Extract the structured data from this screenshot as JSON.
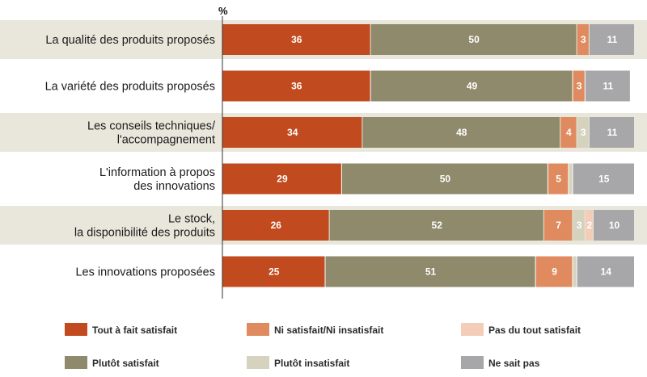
{
  "chart_data": {
    "type": "bar",
    "orientation": "horizontal",
    "stacked": true,
    "unit": "%",
    "xlim": [
      0,
      100
    ],
    "grid": false,
    "legend_position": "bottom",
    "categories": [
      [
        "La qualité des produits proposés"
      ],
      [
        "La variété des produits proposés"
      ],
      [
        "Les conseils techniques/",
        "l'accompagnement"
      ],
      [
        "L'information à propos",
        "des innovations"
      ],
      [
        "Le stock,",
        "la disponibilité des produits"
      ],
      [
        "Les innovations proposées"
      ]
    ],
    "series": [
      {
        "name": "Tout à fait satisfait",
        "color": "#c24a1f",
        "values": [
          36,
          36,
          34,
          29,
          26,
          25
        ],
        "labels": [
          "36",
          "36",
          "34",
          "29",
          "26",
          "25"
        ]
      },
      {
        "name": "Plutôt satisfait",
        "color": "#8f8a6b",
        "values": [
          50,
          49,
          48,
          50,
          52,
          51
        ],
        "labels": [
          "50",
          "49",
          "48",
          "50",
          "52",
          "51"
        ]
      },
      {
        "name": "Ni satisfait/Ni insatisfait",
        "color": "#e08b5f",
        "values": [
          3,
          3,
          4,
          5,
          7,
          9
        ],
        "labels": [
          "3",
          "3",
          "4",
          "5",
          "7",
          "9"
        ]
      },
      {
        "name": "Plutôt insatisfait",
        "color": "#d5d2be",
        "values": [
          0,
          0,
          3,
          1,
          3,
          1
        ],
        "labels": [
          "",
          "",
          "3",
          "",
          "3",
          ""
        ]
      },
      {
        "name": "Pas du tout satisfait",
        "color": "#f3cdb8",
        "values": [
          0,
          0,
          0,
          0,
          2,
          0
        ],
        "labels": [
          "",
          "",
          "",
          "",
          "2",
          ""
        ]
      },
      {
        "name": "Ne sait pas",
        "color": "#a7a7a9",
        "values": [
          11,
          11,
          11,
          15,
          10,
          14
        ],
        "labels": [
          "11",
          "11",
          "11",
          "15",
          "10",
          "14"
        ]
      }
    ],
    "row_backgrounds": [
      "#e9e7dc",
      "#ffffff"
    ]
  },
  "legend": {
    "rows": [
      [
        "Tout à fait satisfait",
        "Ni satisfait/Ni insatisfait",
        "Pas du tout satisfait"
      ],
      [
        "Plutôt satisfait",
        "Plutôt insatisfait",
        "Ne sait pas"
      ]
    ]
  }
}
